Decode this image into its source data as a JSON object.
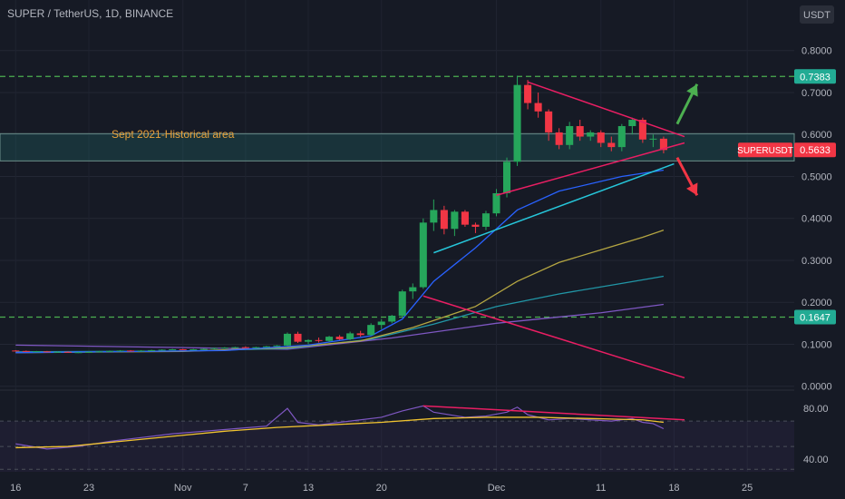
{
  "title": "SUPER / TetherUS, 1D, BINANCE",
  "currency_label": "USDT",
  "annotation": "Sept 2021-Historical area",
  "price_labels": [
    {
      "value": 0.7383,
      "text": "0.7383",
      "color": "#22ab94"
    },
    {
      "value": 0.5633,
      "text": "0.5633",
      "color": "#f23645",
      "name": "SUPERUSDT"
    },
    {
      "value": 0.1647,
      "text": "0.1647",
      "color": "#22ab94"
    }
  ],
  "chart_data": {
    "type": "candlestick",
    "title": "SUPER / TetherUS, 1D, BINANCE",
    "y_ticks": [
      "0.8000",
      "0.7000",
      "0.6000",
      "0.5000",
      "0.4000",
      "0.3000",
      "0.2000",
      "0.1000",
      "0.0000"
    ],
    "y_tick_values": [
      0.8,
      0.7,
      0.6,
      0.5,
      0.4,
      0.3,
      0.2,
      0.1,
      0.0
    ],
    "ylim": [
      -0.005,
      0.86
    ],
    "x_ticks": [
      {
        "day": 0,
        "label": "16"
      },
      {
        "day": 7,
        "label": "23"
      },
      {
        "day": 16,
        "label": "Nov"
      },
      {
        "day": 22,
        "label": "7"
      },
      {
        "day": 28,
        "label": "13"
      },
      {
        "day": 35,
        "label": "20"
      },
      {
        "day": 46,
        "label": "Dec"
      },
      {
        "day": 56,
        "label": "11"
      },
      {
        "day": 63,
        "label": "18"
      },
      {
        "day": 70,
        "label": "25"
      }
    ],
    "x_range": [
      -1.5,
      74.5
    ],
    "candles": [
      [
        0,
        0.085,
        0.086,
        0.083,
        0.084
      ],
      [
        1,
        0.084,
        0.085,
        0.082,
        0.083
      ],
      [
        2,
        0.083,
        0.084,
        0.081,
        0.083
      ],
      [
        3,
        0.083,
        0.084,
        0.081,
        0.082
      ],
      [
        4,
        0.082,
        0.083,
        0.08,
        0.082
      ],
      [
        5,
        0.082,
        0.083,
        0.08,
        0.081
      ],
      [
        6,
        0.081,
        0.082,
        0.079,
        0.081
      ],
      [
        7,
        0.081,
        0.083,
        0.08,
        0.082
      ],
      [
        8,
        0.082,
        0.084,
        0.081,
        0.083
      ],
      [
        9,
        0.083,
        0.085,
        0.082,
        0.084
      ],
      [
        10,
        0.084,
        0.086,
        0.083,
        0.085
      ],
      [
        11,
        0.085,
        0.086,
        0.083,
        0.084
      ],
      [
        12,
        0.084,
        0.086,
        0.083,
        0.085
      ],
      [
        13,
        0.085,
        0.087,
        0.084,
        0.086
      ],
      [
        14,
        0.086,
        0.088,
        0.085,
        0.087
      ],
      [
        15,
        0.087,
        0.089,
        0.086,
        0.088
      ],
      [
        16,
        0.088,
        0.089,
        0.086,
        0.087
      ],
      [
        17,
        0.087,
        0.089,
        0.086,
        0.088
      ],
      [
        18,
        0.088,
        0.09,
        0.087,
        0.089
      ],
      [
        19,
        0.089,
        0.092,
        0.088,
        0.091
      ],
      [
        20,
        0.091,
        0.093,
        0.089,
        0.092
      ],
      [
        21,
        0.092,
        0.094,
        0.09,
        0.093
      ],
      [
        22,
        0.093,
        0.095,
        0.091,
        0.092
      ],
      [
        23,
        0.092,
        0.094,
        0.09,
        0.093
      ],
      [
        24,
        0.093,
        0.096,
        0.092,
        0.095
      ],
      [
        25,
        0.095,
        0.098,
        0.094,
        0.097
      ],
      [
        26,
        0.097,
        0.128,
        0.096,
        0.125
      ],
      [
        27,
        0.125,
        0.13,
        0.103,
        0.106
      ],
      [
        28,
        0.106,
        0.112,
        0.1,
        0.11
      ],
      [
        29,
        0.11,
        0.116,
        0.104,
        0.108
      ],
      [
        30,
        0.108,
        0.12,
        0.106,
        0.118
      ],
      [
        31,
        0.118,
        0.122,
        0.11,
        0.112
      ],
      [
        32,
        0.112,
        0.13,
        0.11,
        0.126
      ],
      [
        33,
        0.126,
        0.132,
        0.118,
        0.122
      ],
      [
        34,
        0.122,
        0.15,
        0.12,
        0.146
      ],
      [
        35,
        0.146,
        0.16,
        0.136,
        0.154
      ],
      [
        36,
        0.154,
        0.17,
        0.15,
        0.168
      ],
      [
        37,
        0.168,
        0.23,
        0.165,
        0.226
      ],
      [
        38,
        0.226,
        0.245,
        0.208,
        0.236
      ],
      [
        39,
        0.236,
        0.4,
        0.232,
        0.39
      ],
      [
        40,
        0.39,
        0.445,
        0.37,
        0.42
      ],
      [
        41,
        0.42,
        0.43,
        0.362,
        0.375
      ],
      [
        42,
        0.375,
        0.42,
        0.358,
        0.416
      ],
      [
        43,
        0.416,
        0.42,
        0.38,
        0.385
      ],
      [
        44,
        0.385,
        0.39,
        0.365,
        0.38
      ],
      [
        45,
        0.38,
        0.418,
        0.372,
        0.412
      ],
      [
        46,
        0.412,
        0.47,
        0.405,
        0.46
      ],
      [
        47,
        0.46,
        0.545,
        0.45,
        0.535
      ],
      [
        48,
        0.535,
        0.74,
        0.525,
        0.718
      ],
      [
        49,
        0.718,
        0.73,
        0.66,
        0.675
      ],
      [
        50,
        0.675,
        0.7,
        0.64,
        0.655
      ],
      [
        51,
        0.655,
        0.66,
        0.585,
        0.605
      ],
      [
        52,
        0.605,
        0.615,
        0.565,
        0.575
      ],
      [
        53,
        0.575,
        0.63,
        0.565,
        0.62
      ],
      [
        54,
        0.62,
        0.635,
        0.585,
        0.595
      ],
      [
        55,
        0.595,
        0.61,
        0.585,
        0.605
      ],
      [
        56,
        0.605,
        0.61,
        0.57,
        0.58
      ],
      [
        57,
        0.58,
        0.595,
        0.56,
        0.57
      ],
      [
        58,
        0.57,
        0.625,
        0.56,
        0.62
      ],
      [
        59,
        0.62,
        0.64,
        0.6,
        0.635
      ],
      [
        60,
        0.635,
        0.64,
        0.58,
        0.588
      ],
      [
        61,
        0.588,
        0.6,
        0.57,
        0.59
      ],
      [
        62,
        0.59,
        0.595,
        0.555,
        0.563
      ]
    ],
    "moving_averages": [
      {
        "color": "#7e57c2",
        "points": [
          [
            0,
            0.098
          ],
          [
            16,
            0.092
          ],
          [
            26,
            0.088
          ],
          [
            36,
            0.115
          ],
          [
            46,
            0.15
          ],
          [
            56,
            0.175
          ],
          [
            62,
            0.195
          ]
        ]
      },
      {
        "color": "#2196a6",
        "points": [
          [
            0,
            0.082
          ],
          [
            16,
            0.084
          ],
          [
            26,
            0.09
          ],
          [
            34,
            0.112
          ],
          [
            40,
            0.148
          ],
          [
            46,
            0.19
          ],
          [
            52,
            0.22
          ],
          [
            58,
            0.245
          ],
          [
            62,
            0.262
          ]
        ]
      },
      {
        "color": "#b5a642",
        "points": [
          [
            0,
            0.08
          ],
          [
            16,
            0.083
          ],
          [
            26,
            0.092
          ],
          [
            33,
            0.108
          ],
          [
            38,
            0.14
          ],
          [
            44,
            0.19
          ],
          [
            48,
            0.25
          ],
          [
            52,
            0.295
          ],
          [
            56,
            0.325
          ],
          [
            60,
            0.355
          ],
          [
            62,
            0.372
          ]
        ]
      },
      {
        "color": "#2962ff",
        "points": [
          [
            0,
            0.08
          ],
          [
            20,
            0.085
          ],
          [
            28,
            0.098
          ],
          [
            34,
            0.12
          ],
          [
            37,
            0.16
          ],
          [
            40,
            0.25
          ],
          [
            44,
            0.33
          ],
          [
            48,
            0.42
          ],
          [
            52,
            0.465
          ],
          [
            58,
            0.5
          ],
          [
            62,
            0.515
          ]
        ]
      }
    ],
    "zone": {
      "y_low": 0.537,
      "y_high": 0.602
    },
    "trendlines": [
      {
        "color": "#e91e63",
        "points": [
          [
            49,
            0.725
          ],
          [
            64,
            0.595
          ]
        ]
      },
      {
        "color": "#e91e63",
        "points": [
          [
            46,
            0.455
          ],
          [
            64,
            0.58
          ]
        ]
      },
      {
        "color": "#26c6da",
        "points": [
          [
            40,
            0.318
          ],
          [
            63,
            0.53
          ]
        ]
      },
      {
        "color": "#e91e63",
        "points": [
          [
            39,
            0.215
          ],
          [
            64,
            0.02
          ]
        ]
      }
    ],
    "dashed_levels": [
      {
        "value": 0.7383,
        "color": "#4caf50"
      },
      {
        "value": 0.1647,
        "color": "#4caf50"
      }
    ],
    "arrows": [
      {
        "color": "#4caf50",
        "from": [
          63.3,
          0.625
        ],
        "to": [
          65.2,
          0.72
        ]
      },
      {
        "color": "#f23645",
        "from": [
          63.3,
          0.545
        ],
        "to": [
          65.2,
          0.455
        ]
      }
    ],
    "rsi": {
      "y_ticks": [
        "80.00",
        "40.00"
      ],
      "y_tick_values": [
        80,
        40
      ],
      "ylim": [
        30,
        93
      ],
      "values": [
        [
          0,
          52
        ],
        [
          3,
          48
        ],
        [
          6,
          50
        ],
        [
          9,
          54
        ],
        [
          12,
          57
        ],
        [
          15,
          60
        ],
        [
          18,
          62
        ],
        [
          21,
          64
        ],
        [
          24,
          66
        ],
        [
          26,
          80
        ],
        [
          27,
          69
        ],
        [
          29,
          67
        ],
        [
          31,
          69
        ],
        [
          33,
          71
        ],
        [
          35,
          73
        ],
        [
          37,
          78
        ],
        [
          39,
          82
        ],
        [
          40,
          77
        ],
        [
          43,
          73
        ],
        [
          45,
          74
        ],
        [
          47,
          77
        ],
        [
          48,
          81
        ],
        [
          49,
          75
        ],
        [
          51,
          71
        ],
        [
          53,
          72
        ],
        [
          55,
          71
        ],
        [
          57,
          70
        ],
        [
          59,
          72
        ],
        [
          60,
          69
        ],
        [
          61,
          68
        ],
        [
          62,
          64
        ]
      ],
      "signal": [
        [
          0,
          49
        ],
        [
          5,
          50
        ],
        [
          10,
          54
        ],
        [
          15,
          58
        ],
        [
          20,
          62
        ],
        [
          25,
          65
        ],
        [
          30,
          67
        ],
        [
          35,
          69
        ],
        [
          40,
          72
        ],
        [
          45,
          73
        ],
        [
          50,
          73
        ],
        [
          55,
          72
        ],
        [
          60,
          71
        ],
        [
          62,
          69
        ]
      ],
      "trendline": [
        [
          39,
          82
        ],
        [
          64,
          71
        ]
      ]
    }
  }
}
